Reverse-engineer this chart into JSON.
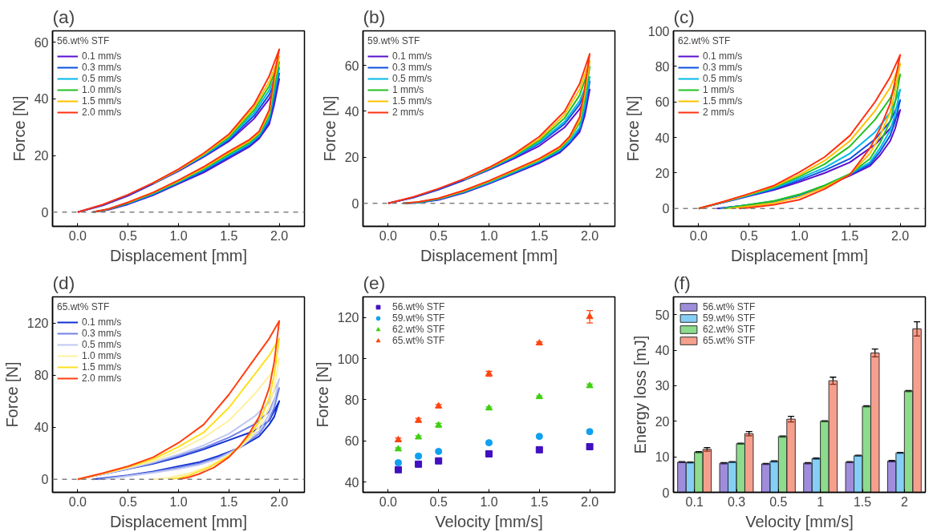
{
  "chart_data": [
    {
      "type": "line",
      "title": "(a)",
      "xlabel": "Displacement [mm]",
      "ylabel": "Force [N]",
      "legend_title": "56.wt% STF",
      "legend": "top left",
      "grid": false,
      "line_style": "solid",
      "xlim": [
        -0.25,
        2.25
      ],
      "xticks": [
        {
          "value": 0,
          "label": "0.0"
        },
        {
          "value": 0.5,
          "label": "0.5"
        },
        {
          "value": 1,
          "label": "1.0"
        },
        {
          "value": 1.5,
          "label": "1.5"
        },
        {
          "value": 2,
          "label": "2.0"
        }
      ],
      "ylim": [
        -5,
        64
      ],
      "yticks": [
        0,
        20,
        40,
        60
      ],
      "ref_lines": [
        {
          "axis": "y",
          "value": 0,
          "color": "#808080",
          "line_style": "dashed"
        }
      ],
      "x": [
        0,
        0.25,
        0.5,
        0.75,
        1,
        1.25,
        1.5,
        1.75,
        1.9,
        2,
        1.95,
        1.9,
        1.8,
        1.7,
        1.5,
        1.25,
        1,
        0.75,
        0.5,
        0.3,
        0.15
      ],
      "series": [
        {
          "name": "0.1 mm/s",
          "color": "#5b0fd0",
          "values": [
            0,
            2.4,
            5.8,
            10,
            14.5,
            19.5,
            25,
            33,
            40,
            47,
            38,
            31,
            26,
            23,
            19,
            14,
            10,
            6,
            2.8,
            0.8,
            0
          ]
        },
        {
          "name": "0.3 mm/s",
          "color": "#0a4fe0",
          "values": [
            0,
            2.5,
            6,
            10.2,
            14.8,
            19.8,
            25.5,
            34,
            41.5,
            49,
            40,
            32,
            26.5,
            23.5,
            19.5,
            14.5,
            10.3,
            6.2,
            3,
            0.9,
            0
          ]
        },
        {
          "name": "0.5 mm/s",
          "color": "#00b8e8",
          "values": [
            null,
            null,
            null,
            10.2,
            14.8,
            20,
            26,
            35,
            43,
            51,
            42,
            33,
            27,
            24,
            20,
            15,
            10.6,
            6.5,
            3.2,
            1,
            0
          ]
        },
        {
          "name": "1.0 mm/s",
          "color": "#22c020",
          "values": [
            null,
            null,
            null,
            10.3,
            15,
            20.3,
            26.5,
            36,
            44.5,
            53,
            44,
            34,
            27.5,
            24.5,
            20.5,
            15.3,
            10.8,
            6.7,
            3.3,
            1,
            0
          ]
        },
        {
          "name": "1.5 mm/s",
          "color": "#ffc000",
          "values": [
            null,
            null,
            null,
            10.3,
            15,
            20.5,
            27,
            37,
            46,
            55,
            46,
            35,
            28,
            25,
            21,
            15.6,
            11,
            6.9,
            3.4,
            null,
            null
          ]
        },
        {
          "name": "2.0 mm/s",
          "color": "#ff3010",
          "values": [
            0,
            2.7,
            6.2,
            10.4,
            15.2,
            20.8,
            27.5,
            38,
            48,
            57.5,
            48,
            36,
            28.5,
            25.5,
            21.5,
            16,
            11.3,
            7,
            3.5,
            1.1,
            0
          ]
        }
      ]
    },
    {
      "type": "line",
      "title": "(b)",
      "xlabel": "Displacement [mm]",
      "ylabel": "Force [N]",
      "legend_title": "59.wt% STF",
      "legend": "top left",
      "grid": false,
      "line_style": "solid",
      "xlim": [
        -0.25,
        2.25
      ],
      "xticks": [
        {
          "value": 0,
          "label": "0.0"
        },
        {
          "value": 0.5,
          "label": "0.5"
        },
        {
          "value": 1,
          "label": "1.0"
        },
        {
          "value": 1.5,
          "label": "1.5"
        },
        {
          "value": 2,
          "label": "2.0"
        }
      ],
      "ylim": [
        -10,
        75
      ],
      "yticks": [
        0,
        20,
        40,
        60
      ],
      "ref_lines": [
        {
          "axis": "y",
          "value": 0,
          "color": "#808080",
          "line_style": "dashed"
        }
      ],
      "x": [
        0,
        0.25,
        0.5,
        0.75,
        1,
        1.25,
        1.5,
        1.75,
        1.9,
        2,
        1.95,
        1.9,
        1.8,
        1.7,
        1.5,
        1.25,
        1,
        0.75,
        0.5,
        0.3,
        0.15
      ],
      "series": [
        {
          "name": "0.1 mm/s",
          "color": "#5b0fd0",
          "values": [
            0,
            2.5,
            6,
            10,
            14.5,
            19.5,
            25,
            33,
            41,
            49.5,
            38,
            31,
            26,
            22,
            17.5,
            13,
            8.5,
            4.5,
            1.5,
            0.3,
            0
          ]
        },
        {
          "name": "0.3 mm/s",
          "color": "#0a4fe0",
          "values": [
            0,
            2.5,
            6,
            10.2,
            14.8,
            20,
            26,
            34.5,
            43,
            53,
            40,
            32,
            26.5,
            22.5,
            18,
            13.3,
            8.8,
            4.8,
            1.7,
            0.4,
            0
          ]
        },
        {
          "name": "0.5 mm/s",
          "color": "#00b8e8",
          "values": [
            null,
            null,
            null,
            10.3,
            15,
            20.3,
            26.5,
            35.5,
            44.5,
            55,
            42,
            33,
            27,
            23,
            18.3,
            13.6,
            9,
            5,
            1.8,
            0.4,
            0
          ]
        },
        {
          "name": "1 mm/s",
          "color": "#22c020",
          "values": [
            null,
            null,
            null,
            10.4,
            15.2,
            20.7,
            27.3,
            37,
            47,
            59.5,
            45,
            35,
            28,
            23.5,
            18.8,
            14,
            9.4,
            5.2,
            2,
            0.5,
            0
          ]
        },
        {
          "name": "1.5 mm/s",
          "color": "#ffc000",
          "values": [
            null,
            null,
            null,
            10.5,
            15.4,
            21,
            28,
            38.5,
            49.5,
            62,
            47,
            36,
            28.5,
            24,
            19,
            14.3,
            9.6,
            5.4,
            2.1,
            null,
            null
          ]
        },
        {
          "name": "2 mm/s",
          "color": "#ff3010",
          "values": [
            0,
            2.8,
            6.4,
            10.6,
            15.6,
            21.5,
            29,
            40,
            52,
            65,
            50,
            37.5,
            29,
            24.5,
            19.5,
            14.6,
            9.8,
            5.6,
            2.2,
            0.6,
            0
          ]
        }
      ]
    },
    {
      "type": "line",
      "title": "(c)",
      "xlabel": "Displacement [mm]",
      "ylabel": "Force [N]",
      "legend_title": "62.wt% STF",
      "legend": "top left",
      "grid": false,
      "line_style": "solid",
      "xlim": [
        -0.25,
        2.25
      ],
      "xticks": [
        {
          "value": 0,
          "label": "0.0"
        },
        {
          "value": 0.5,
          "label": "0.5"
        },
        {
          "value": 1,
          "label": "1.0"
        },
        {
          "value": 1.5,
          "label": "1.5"
        },
        {
          "value": 2,
          "label": "2.0"
        }
      ],
      "ylim": [
        -10,
        100
      ],
      "yticks": [
        0,
        20,
        40,
        60,
        80,
        100
      ],
      "ref_lines": [
        {
          "axis": "y",
          "value": 0,
          "color": "#808080",
          "line_style": "dashed"
        }
      ],
      "series": [
        {
          "name": "0.1 mm/s",
          "color": "#5b0fd0",
          "x": [
            0,
            0.25,
            0.5,
            0.75,
            1,
            1.25,
            1.5,
            1.75,
            1.9,
            2,
            1.95,
            1.9,
            1.8,
            1.7,
            1.5,
            1.25,
            1,
            0.75,
            0.5,
            0.18
          ],
          "values": [
            0,
            3.5,
            7,
            10.5,
            15,
            20,
            26,
            36,
            45,
            55.5,
            45,
            38,
            30,
            24,
            18.5,
            12.5,
            7.5,
            4,
            2,
            0
          ]
        },
        {
          "name": "0.3 mm/s",
          "color": "#0a4fe0",
          "x": [
            0,
            0.25,
            0.5,
            0.75,
            1,
            1.25,
            1.5,
            1.75,
            1.9,
            2,
            1.95,
            1.9,
            1.8,
            1.7,
            1.5,
            1.25,
            1,
            0.75,
            0.5,
            0.2
          ],
          "values": [
            0,
            3.6,
            7.2,
            11,
            16,
            21.5,
            28,
            39,
            49,
            61,
            49,
            41,
            32,
            25,
            19,
            12.8,
            7.6,
            4.1,
            2.1,
            0
          ]
        },
        {
          "name": "0.5 mm/s",
          "color": "#00b8e8",
          "x": [
            0,
            0.25,
            0.5,
            0.75,
            1,
            1.25,
            1.5,
            1.75,
            1.9,
            2,
            1.95,
            1.9,
            1.8,
            1.7,
            1.5,
            1.25,
            1,
            0.75,
            0.5,
            0.22
          ],
          "values": [
            0,
            3.7,
            7.5,
            11.5,
            17,
            23,
            31,
            43,
            54,
            67,
            53,
            44,
            34,
            26,
            19.5,
            13,
            7.8,
            4.2,
            2.2,
            0
          ]
        },
        {
          "name": "1 mm/s",
          "color": "#22c020",
          "x": [
            0,
            0.25,
            0.5,
            0.75,
            1,
            1.25,
            1.5,
            1.75,
            1.9,
            2,
            1.95,
            1.9,
            1.8,
            1.7,
            1.5,
            1.25,
            1,
            0.75,
            0.5,
            0.25
          ],
          "values": [
            0,
            3.8,
            7.8,
            12,
            18,
            25,
            35,
            50,
            62,
            75.5,
            60,
            49,
            37,
            28,
            19.5,
            13,
            8,
            4.3,
            2.2,
            0
          ]
        },
        {
          "name": "1.5 mm/s",
          "color": "#ffc000",
          "x": [
            0,
            0.25,
            0.5,
            0.75,
            1,
            1.25,
            1.5,
            1.75,
            1.9,
            2,
            1.95,
            1.9,
            1.8,
            1.7,
            1.5,
            1.25,
            1,
            0.75,
            0.5,
            0.3
          ],
          "values": [
            0,
            3.9,
            8,
            12.5,
            19,
            27,
            38,
            55,
            68,
            81.5,
            66,
            54,
            41,
            31,
            19,
            12,
            6.5,
            3.2,
            1.3,
            0
          ]
        },
        {
          "name": "2 mm/s",
          "color": "#ff3010",
          "x": [
            0,
            0.25,
            0.5,
            0.75,
            1,
            1.25,
            1.5,
            1.75,
            1.9,
            2,
            1.95,
            1.9,
            1.8,
            1.7,
            1.5,
            1.25,
            1,
            0.75,
            0.5,
            0.4
          ],
          "values": [
            0,
            4,
            8.3,
            13,
            20.5,
            29,
            41,
            60,
            74,
            86.5,
            72,
            59,
            45,
            34,
            19,
            11,
            5,
            2.2,
            0.5,
            0
          ]
        }
      ]
    },
    {
      "type": "line",
      "title": "(d)",
      "xlabel": "Displacement [mm]",
      "ylabel": "Force [N]",
      "legend_title": "65.wt% STF",
      "legend": "top left",
      "grid": false,
      "line_style": "solid",
      "xlim": [
        -0.25,
        2.25
      ],
      "xticks": [
        {
          "value": 0,
          "label": "0.0"
        },
        {
          "value": 0.5,
          "label": "0.5"
        },
        {
          "value": 1,
          "label": "1.0"
        },
        {
          "value": 1.5,
          "label": "1.5"
        },
        {
          "value": 2,
          "label": "2.0"
        }
      ],
      "ylim": [
        -10,
        140
      ],
      "yticks": [
        0,
        40,
        80,
        120
      ],
      "ref_lines": [
        {
          "axis": "y",
          "value": 0,
          "color": "#808080",
          "line_style": "dashed"
        }
      ],
      "series": [
        {
          "name": "0.1 mm/s",
          "color": "#1030d0",
          "x": [
            0,
            0.25,
            0.5,
            0.75,
            1,
            1.25,
            1.5,
            1.75,
            1.9,
            2,
            1.95,
            1.9,
            1.8,
            1.6,
            1.4,
            1.2,
            1,
            0.75,
            0.5,
            0.15
          ],
          "values": [
            0,
            4,
            8,
            12,
            17,
            23,
            30,
            37,
            45,
            60,
            48,
            42,
            33,
            24,
            18,
            13,
            10,
            6,
            3,
            0
          ]
        },
        {
          "name": "0.3 mm/s",
          "color": "#7080e8",
          "x": [
            0,
            0.25,
            0.5,
            0.75,
            1,
            1.25,
            1.5,
            1.75,
            1.9,
            2,
            1.95,
            1.9,
            1.8,
            1.6,
            1.4,
            1.2,
            1,
            0.75,
            0.5,
            0.2
          ],
          "values": [
            0,
            4,
            8,
            12.5,
            18,
            24,
            32,
            42,
            52,
            70,
            55,
            46,
            35,
            24,
            17,
            12,
            9,
            5.5,
            2.7,
            0
          ]
        },
        {
          "name": "0.5 mm/s",
          "color": "#c0c8f0",
          "x": [
            0,
            0.25,
            0.5,
            0.75,
            1,
            1.25,
            1.5,
            1.75,
            1.9,
            2,
            1.95,
            1.9,
            1.8,
            1.6,
            1.4,
            1.2,
            1,
            0.75,
            0.5,
            0.25
          ],
          "values": [
            0,
            4,
            8.2,
            13,
            19,
            26,
            35,
            48,
            59,
            77,
            60,
            50,
            37,
            24,
            16,
            11,
            8,
            5,
            2.5,
            0
          ]
        },
        {
          "name": "1.0 mm/s",
          "color": "#fff0a0",
          "x": [
            0,
            0.25,
            0.5,
            0.75,
            1,
            1.25,
            1.5,
            1.75,
            1.9,
            2,
            1.95,
            1.9,
            1.8,
            1.7,
            1.6,
            1.5,
            1.3,
            1.1,
            0.9,
            0.75
          ],
          "values": [
            0,
            4.3,
            9,
            14,
            22,
            32,
            45,
            65,
            79,
            93,
            70,
            55,
            40,
            31,
            24,
            18,
            10,
            4.5,
            1.2,
            0
          ]
        },
        {
          "name": "1.5 mm/s",
          "color": "#ffe020",
          "x": [
            0,
            0.25,
            0.5,
            0.75,
            1,
            1.25,
            1.5,
            1.75,
            1.9,
            2,
            1.95,
            1.9,
            1.8,
            1.7,
            1.6,
            1.5,
            1.3,
            1.1,
            1,
            0.9
          ],
          "values": [
            0,
            4.5,
            9.5,
            15.5,
            25,
            36,
            55,
            80,
            95,
            108,
            80,
            62,
            44,
            33,
            25,
            18,
            9,
            3,
            1,
            0
          ]
        },
        {
          "name": "2.0 mm/s",
          "color": "#ff4010",
          "x": [
            0,
            0.25,
            0.5,
            0.75,
            1,
            1.25,
            1.5,
            1.75,
            1.9,
            2,
            1.95,
            1.9,
            1.8,
            1.7,
            1.6,
            1.5,
            1.35,
            1.2,
            1.1,
            1
          ],
          "values": [
            0,
            4.7,
            10,
            17,
            28,
            42,
            65,
            92,
            108,
            121.5,
            90,
            70,
            48,
            35,
            25,
            17,
            9,
            4,
            1.5,
            0
          ]
        }
      ]
    },
    {
      "type": "scatter",
      "title": "(e)",
      "xlabel": "Velocity [mm/s]",
      "ylabel": "Force [N]",
      "legend": "top left",
      "grid": false,
      "xlim": [
        -0.25,
        2.25
      ],
      "xticks": [
        {
          "value": 0,
          "label": "0.0"
        },
        {
          "value": 0.5,
          "label": "0.5"
        },
        {
          "value": 1,
          "label": "1.0"
        },
        {
          "value": 1.5,
          "label": "1.5"
        },
        {
          "value": 2,
          "label": "2.0"
        }
      ],
      "ylim": [
        35,
        130
      ],
      "yticks": [
        40,
        60,
        80,
        100,
        120
      ],
      "x": [
        0.1,
        0.3,
        0.5,
        1.0,
        1.5,
        2.0
      ],
      "series": [
        {
          "name": "56.wt% STF",
          "color": "#4010c0",
          "marker": "square",
          "values": [
            46,
            48.7,
            50.3,
            53.7,
            55.7,
            57.2
          ],
          "errors": [
            0.8,
            0.6,
            0.6,
            0.6,
            0.6,
            0.7
          ]
        },
        {
          "name": "59.wt% STF",
          "color": "#10a0f0",
          "marker": "circle",
          "values": [
            49.4,
            52.6,
            54.9,
            59.1,
            62.2,
            64.5
          ],
          "errors": [
            0.6,
            0.7,
            0.6,
            0.7,
            0.6,
            0.7
          ]
        },
        {
          "name": "62.wt% STF",
          "color": "#40d010",
          "marker": "triangle",
          "values": [
            56,
            61.8,
            67.6,
            75.9,
            81.4,
            86.8
          ],
          "errors": [
            0.6,
            0.7,
            0.9,
            0.6,
            0.5,
            0.8
          ]
        },
        {
          "name": "65.wt% STF",
          "color": "#ff4510",
          "marker": "triangle",
          "values": [
            60.5,
            70,
            76.9,
            92.6,
            107.5,
            120.3
          ],
          "errors": [
            0.9,
            1,
            0.8,
            1.2,
            0.6,
            3
          ]
        }
      ]
    },
    {
      "type": "bar",
      "title": "(f)",
      "xlabel": "Velocity [mm/s]",
      "ylabel": "Energy loss [mJ]",
      "legend": "top left",
      "grid": false,
      "ylim": [
        0,
        55
      ],
      "yticks": [
        0,
        10,
        20,
        30,
        40,
        50
      ],
      "categories": [
        "0.1",
        "0.3",
        "0.5",
        "1",
        "1.5",
        "2"
      ],
      "series": [
        {
          "name": "56.wt% STF",
          "color": "#5030c0",
          "values": [
            8.5,
            8.2,
            8,
            8.2,
            8.5,
            8.8
          ],
          "errors": [
            0.15,
            0.15,
            0.15,
            0.15,
            0.15,
            0.2
          ]
        },
        {
          "name": "59.wt% STF",
          "color": "#20a8f0",
          "values": [
            8.4,
            8.5,
            8.7,
            9.5,
            10.3,
            11.1
          ],
          "errors": [
            0.15,
            0.15,
            0.15,
            0.15,
            0.15,
            0.15
          ]
        },
        {
          "name": "62.wt% STF",
          "color": "#30c030",
          "values": [
            11.3,
            13.7,
            15.7,
            20,
            24.2,
            28.5
          ],
          "errors": [
            0.15,
            0.15,
            0.15,
            0.15,
            0.15,
            0.15
          ]
        },
        {
          "name": "65.wt% STF",
          "color": "#f05030",
          "values": [
            12.1,
            16.5,
            20.6,
            31.4,
            39.2,
            46
          ],
          "errors": [
            0.5,
            0.6,
            0.8,
            1,
            1.1,
            2
          ]
        }
      ]
    }
  ]
}
